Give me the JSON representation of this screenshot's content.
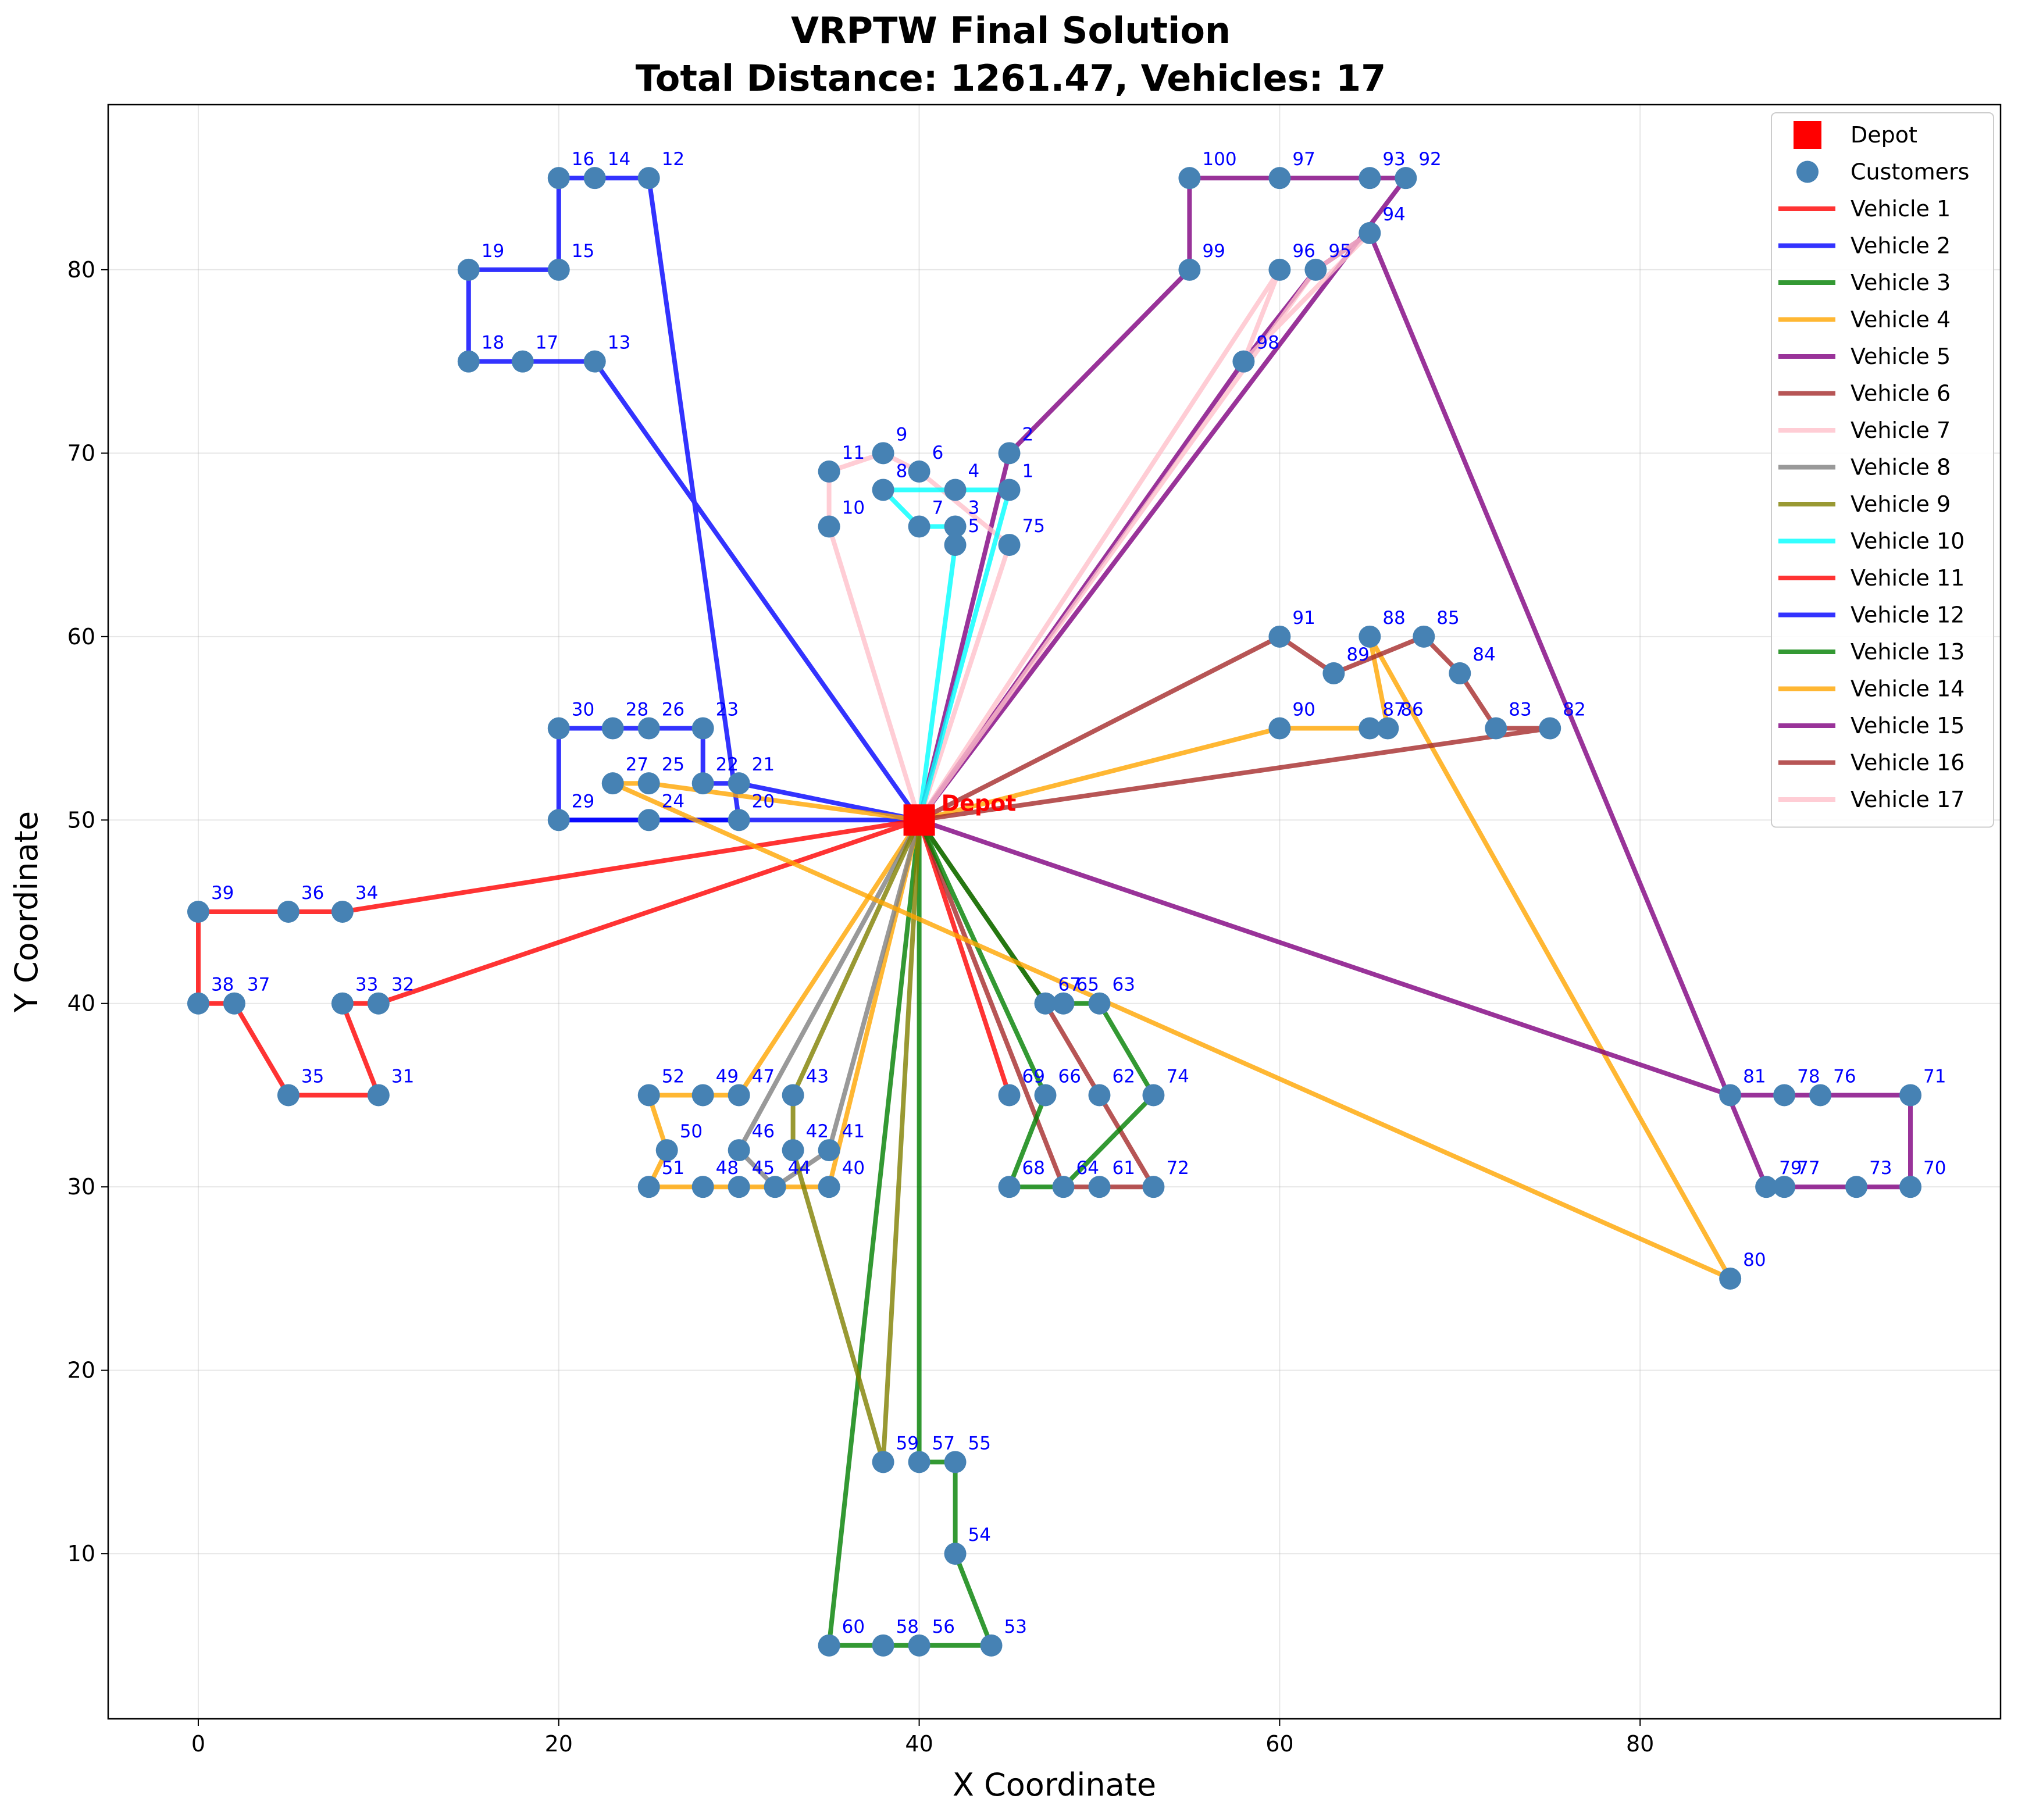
{
  "chart_data": {
    "type": "scatter",
    "title": "VRPTW Final Solution",
    "subtitle": "Total Distance: 1261.47, Vehicles: 17",
    "xlabel": "X Coordinate",
    "ylabel": "Y Coordinate",
    "xlim": [
      -5,
      100
    ],
    "ylim": [
      1,
      89
    ],
    "xticks": [
      0,
      20,
      40,
      60,
      80
    ],
    "yticks": [
      10,
      20,
      30,
      40,
      50,
      60,
      70,
      80
    ],
    "grid": true,
    "legend_position": "top-right",
    "depot": {
      "label": "Depot",
      "x": 40,
      "y": 50,
      "color": "#ff0000"
    },
    "customers_label": "Customers",
    "customer_color": "#4682b4",
    "customers": [
      {
        "id": "1",
        "x": 45,
        "y": 68
      },
      {
        "id": "2",
        "x": 45,
        "y": 70
      },
      {
        "id": "3",
        "x": 42,
        "y": 66
      },
      {
        "id": "4",
        "x": 42,
        "y": 68
      },
      {
        "id": "5",
        "x": 42,
        "y": 65
      },
      {
        "id": "6",
        "x": 40,
        "y": 69
      },
      {
        "id": "7",
        "x": 40,
        "y": 66
      },
      {
        "id": "8",
        "x": 38,
        "y": 68
      },
      {
        "id": "9",
        "x": 38,
        "y": 70
      },
      {
        "id": "10",
        "x": 35,
        "y": 66
      },
      {
        "id": "11",
        "x": 35,
        "y": 69
      },
      {
        "id": "12",
        "x": 25,
        "y": 85
      },
      {
        "id": "13",
        "x": 22,
        "y": 75
      },
      {
        "id": "14",
        "x": 22,
        "y": 85
      },
      {
        "id": "15",
        "x": 20,
        "y": 80
      },
      {
        "id": "16",
        "x": 20,
        "y": 85
      },
      {
        "id": "17",
        "x": 18,
        "y": 75
      },
      {
        "id": "18",
        "x": 15,
        "y": 75
      },
      {
        "id": "19",
        "x": 15,
        "y": 80
      },
      {
        "id": "20",
        "x": 30,
        "y": 50
      },
      {
        "id": "21",
        "x": 30,
        "y": 52
      },
      {
        "id": "22",
        "x": 28,
        "y": 52
      },
      {
        "id": "23",
        "x": 28,
        "y": 55
      },
      {
        "id": "24",
        "x": 25,
        "y": 50
      },
      {
        "id": "25",
        "x": 25,
        "y": 52
      },
      {
        "id": "26",
        "x": 25,
        "y": 55
      },
      {
        "id": "27",
        "x": 23,
        "y": 52
      },
      {
        "id": "28",
        "x": 23,
        "y": 55
      },
      {
        "id": "29",
        "x": 20,
        "y": 50
      },
      {
        "id": "30",
        "x": 20,
        "y": 55
      },
      {
        "id": "31",
        "x": 10,
        "y": 35
      },
      {
        "id": "32",
        "x": 10,
        "y": 40
      },
      {
        "id": "33",
        "x": 8,
        "y": 40
      },
      {
        "id": "34",
        "x": 8,
        "y": 45
      },
      {
        "id": "35",
        "x": 5,
        "y": 35
      },
      {
        "id": "36",
        "x": 5,
        "y": 45
      },
      {
        "id": "37",
        "x": 2,
        "y": 40
      },
      {
        "id": "38",
        "x": 0,
        "y": 40
      },
      {
        "id": "39",
        "x": 0,
        "y": 45
      },
      {
        "id": "40",
        "x": 35,
        "y": 30
      },
      {
        "id": "41",
        "x": 35,
        "y": 32
      },
      {
        "id": "42",
        "x": 33,
        "y": 32
      },
      {
        "id": "43",
        "x": 33,
        "y": 35
      },
      {
        "id": "44",
        "x": 32,
        "y": 30
      },
      {
        "id": "45",
        "x": 30,
        "y": 30
      },
      {
        "id": "46",
        "x": 30,
        "y": 32
      },
      {
        "id": "47",
        "x": 30,
        "y": 35
      },
      {
        "id": "48",
        "x": 28,
        "y": 30
      },
      {
        "id": "49",
        "x": 28,
        "y": 35
      },
      {
        "id": "50",
        "x": 26,
        "y": 32
      },
      {
        "id": "51",
        "x": 25,
        "y": 30
      },
      {
        "id": "52",
        "x": 25,
        "y": 35
      },
      {
        "id": "53",
        "x": 44,
        "y": 5
      },
      {
        "id": "54",
        "x": 42,
        "y": 10
      },
      {
        "id": "55",
        "x": 42,
        "y": 15
      },
      {
        "id": "56",
        "x": 40,
        "y": 5
      },
      {
        "id": "57",
        "x": 40,
        "y": 15
      },
      {
        "id": "58",
        "x": 38,
        "y": 5
      },
      {
        "id": "59",
        "x": 38,
        "y": 15
      },
      {
        "id": "60",
        "x": 35,
        "y": 5
      },
      {
        "id": "61",
        "x": 50,
        "y": 30
      },
      {
        "id": "62",
        "x": 50,
        "y": 35
      },
      {
        "id": "63",
        "x": 50,
        "y": 40
      },
      {
        "id": "64",
        "x": 48,
        "y": 30
      },
      {
        "id": "65",
        "x": 48,
        "y": 40
      },
      {
        "id": "66",
        "x": 47,
        "y": 35
      },
      {
        "id": "67",
        "x": 47,
        "y": 40
      },
      {
        "id": "68",
        "x": 45,
        "y": 30
      },
      {
        "id": "69",
        "x": 45,
        "y": 35
      },
      {
        "id": "70",
        "x": 95,
        "y": 30
      },
      {
        "id": "71",
        "x": 95,
        "y": 35
      },
      {
        "id": "72",
        "x": 53,
        "y": 30
      },
      {
        "id": "73",
        "x": 92,
        "y": 30
      },
      {
        "id": "74",
        "x": 53,
        "y": 35
      },
      {
        "id": "75",
        "x": 45,
        "y": 65
      },
      {
        "id": "76",
        "x": 90,
        "y": 35
      },
      {
        "id": "77",
        "x": 88,
        "y": 30
      },
      {
        "id": "78",
        "x": 88,
        "y": 35
      },
      {
        "id": "79",
        "x": 87,
        "y": 30
      },
      {
        "id": "80",
        "x": 85,
        "y": 25
      },
      {
        "id": "81",
        "x": 85,
        "y": 35
      },
      {
        "id": "82",
        "x": 75,
        "y": 55
      },
      {
        "id": "83",
        "x": 72,
        "y": 55
      },
      {
        "id": "84",
        "x": 70,
        "y": 58
      },
      {
        "id": "85",
        "x": 68,
        "y": 60
      },
      {
        "id": "86",
        "x": 66,
        "y": 55
      },
      {
        "id": "87",
        "x": 65,
        "y": 55
      },
      {
        "id": "88",
        "x": 65,
        "y": 60
      },
      {
        "id": "89",
        "x": 63,
        "y": 58
      },
      {
        "id": "90",
        "x": 60,
        "y": 55
      },
      {
        "id": "91",
        "x": 60,
        "y": 60
      },
      {
        "id": "92",
        "x": 67,
        "y": 85
      },
      {
        "id": "93",
        "x": 65,
        "y": 85
      },
      {
        "id": "94",
        "x": 65,
        "y": 82
      },
      {
        "id": "95",
        "x": 62,
        "y": 80
      },
      {
        "id": "96",
        "x": 60,
        "y": 80
      },
      {
        "id": "97",
        "x": 60,
        "y": 85
      },
      {
        "id": "98",
        "x": 58,
        "y": 75
      },
      {
        "id": "99",
        "x": 55,
        "y": 80
      },
      {
        "id": "100",
        "x": 55,
        "y": 85
      }
    ],
    "series": [
      {
        "name": "Vehicle 1",
        "color": "#ff0000",
        "route": [
          69
        ]
      },
      {
        "name": "Vehicle 2",
        "color": "#0000ff",
        "route": [
          29,
          24,
          20
        ]
      },
      {
        "name": "Vehicle 3",
        "color": "#008000",
        "route": [
          60,
          58,
          56,
          53,
          54,
          55,
          57
        ]
      },
      {
        "name": "Vehicle 4",
        "color": "#ffa500",
        "route": [
          47,
          49,
          52,
          50,
          51,
          48,
          45,
          40
        ]
      },
      {
        "name": "Vehicle 5",
        "color": "#800080",
        "route": [
          2,
          99,
          100,
          97,
          93,
          92
        ]
      },
      {
        "name": "Vehicle 6",
        "color": "#a52a2a",
        "route": [
          67,
          62,
          72,
          61,
          64
        ]
      },
      {
        "name": "Vehicle 7",
        "color": "#ffc0cb",
        "route": [
          75,
          6,
          9,
          11,
          10
        ]
      },
      {
        "name": "Vehicle 8",
        "color": "#808080",
        "route": [
          46,
          44,
          41
        ]
      },
      {
        "name": "Vehicle 9",
        "color": "#808000",
        "route": [
          59,
          42,
          43
        ]
      },
      {
        "name": "Vehicle 10",
        "color": "#00ffff",
        "route": [
          5,
          3,
          7,
          8,
          4,
          1
        ]
      },
      {
        "name": "Vehicle 11",
        "color": "#ff0000",
        "route": [
          34,
          36,
          39,
          38,
          37,
          35,
          31,
          33,
          32
        ]
      },
      {
        "name": "Vehicle 12",
        "color": "#0000ff",
        "route": [
          21,
          22,
          23,
          26,
          28,
          30,
          29,
          24,
          20,
          12,
          14,
          16,
          15,
          19,
          18,
          17,
          13
        ]
      },
      {
        "name": "Vehicle 13",
        "color": "#008000",
        "route": [
          66,
          68,
          64,
          74,
          63,
          65,
          67
        ]
      },
      {
        "name": "Vehicle 14",
        "color": "#ffa500",
        "route": [
          90,
          87,
          86,
          88,
          80,
          27,
          25
        ]
      },
      {
        "name": "Vehicle 15",
        "color": "#800080",
        "route": [
          81,
          78,
          76,
          71,
          70,
          73,
          77,
          79,
          94,
          95,
          98
        ]
      },
      {
        "name": "Vehicle 16",
        "color": "#a52a2a",
        "route": [
          91,
          89,
          85,
          84,
          83,
          82
        ]
      },
      {
        "name": "Vehicle 17",
        "color": "#ffc0cb",
        "route": [
          96,
          98,
          94,
          95
        ]
      }
    ]
  }
}
